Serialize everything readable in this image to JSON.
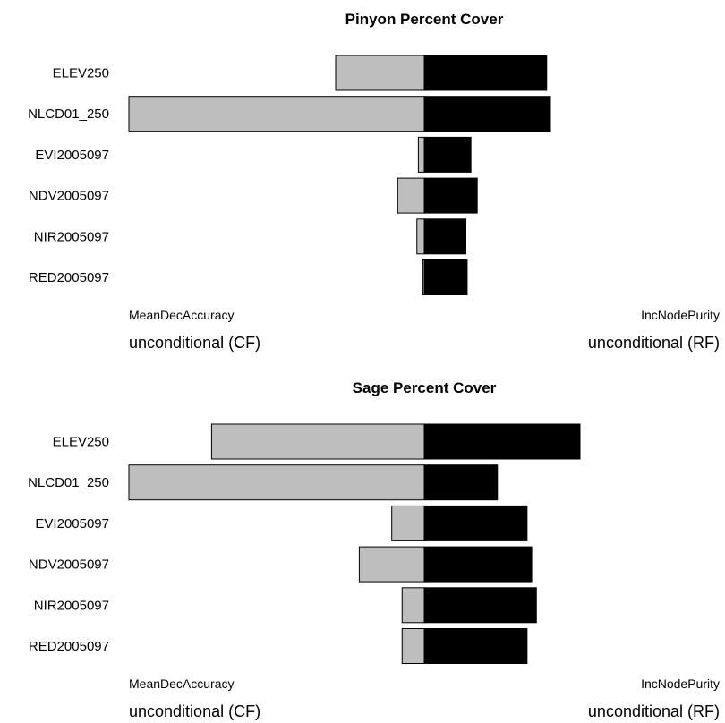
{
  "chart_data": [
    {
      "type": "bar",
      "title": "Pinyon Percent Cover",
      "categories": [
        "ELEV250",
        "NLCD01_250",
        "EVI2005097",
        "NDV2005097",
        "NIR2005097",
        "RED2005097"
      ],
      "series": [
        {
          "name": "MeanDecAccuracy",
          "method": "unconditional (CF)",
          "direction": "left",
          "color": "#bebebe",
          "values": [
            0.3,
            1.0,
            0.02,
            0.09,
            0.025,
            0.005
          ]
        },
        {
          "name": "IncNodePurity",
          "method": "unconditional (RF)",
          "direction": "right",
          "color": "#000000",
          "values": [
            0.97,
            1.0,
            0.37,
            0.42,
            0.33,
            0.34
          ]
        }
      ]
    },
    {
      "type": "bar",
      "title": "Sage Percent Cover",
      "categories": [
        "ELEV250",
        "NLCD01_250",
        "EVI2005097",
        "NDV2005097",
        "NIR2005097",
        "RED2005097"
      ],
      "series": [
        {
          "name": "MeanDecAccuracy",
          "method": "unconditional (CF)",
          "direction": "left",
          "color": "#bebebe",
          "values": [
            0.72,
            1.0,
            0.11,
            0.22,
            0.075,
            0.075
          ]
        },
        {
          "name": "IncNodePurity",
          "method": "unconditional (RF)",
          "direction": "right",
          "color": "#000000",
          "values": [
            1.0,
            0.47,
            0.66,
            0.69,
            0.72,
            0.66
          ]
        }
      ]
    }
  ]
}
